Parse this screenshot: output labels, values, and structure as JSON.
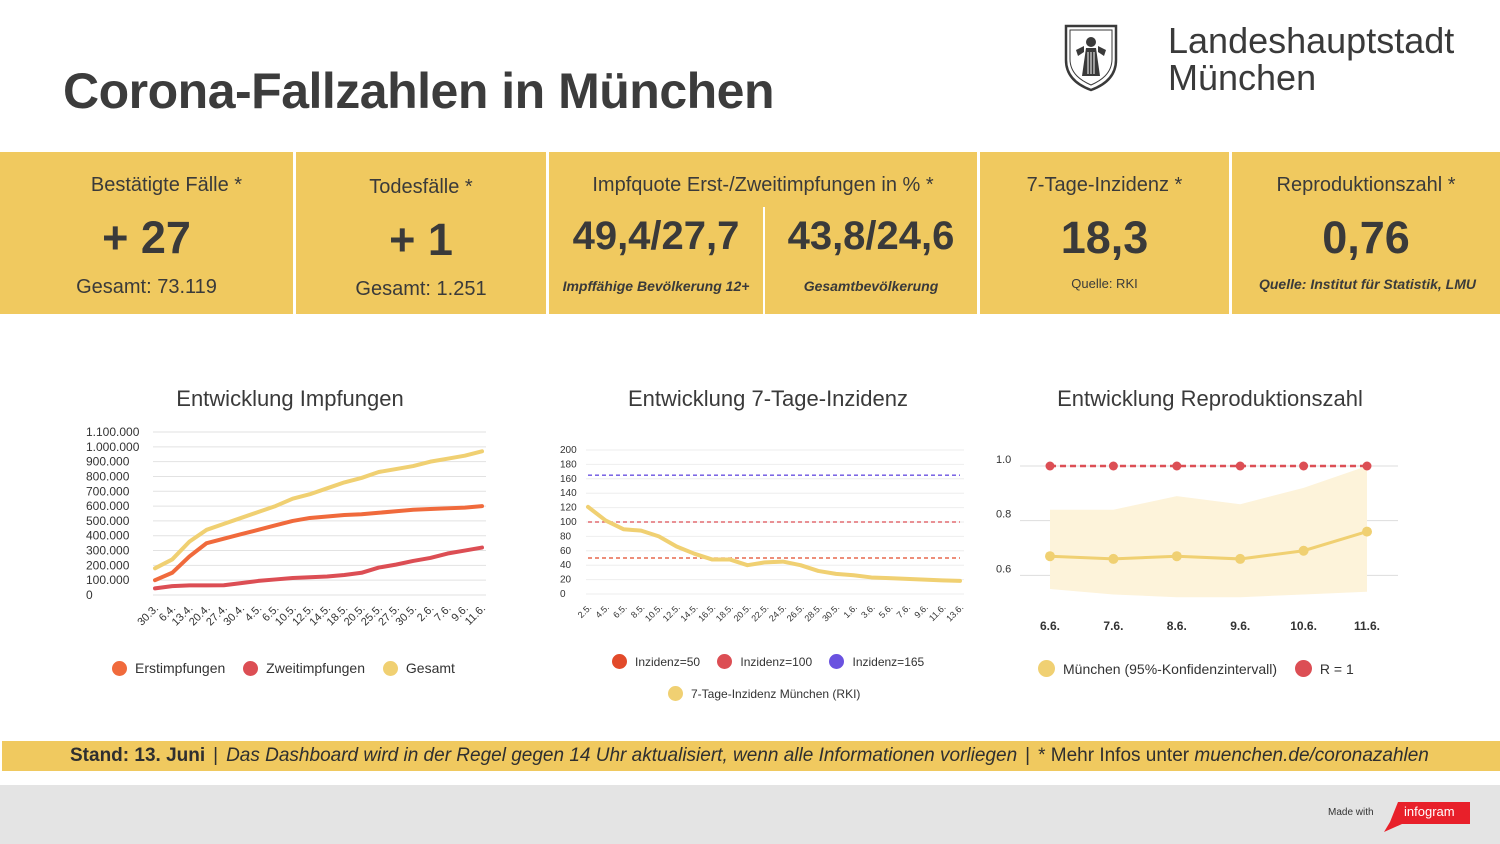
{
  "page": {
    "title": "Corona-Fallzahlen in München",
    "logo_line1": "Landeshauptstadt",
    "logo_line2": "München"
  },
  "stats": {
    "cases": {
      "title": "Bestätigte Fälle *",
      "value": "+ 27",
      "sub": "Gesamt: 73.119"
    },
    "deaths": {
      "title": "Todesfälle *",
      "value": "+ 1",
      "sub": "Gesamt: 1.251"
    },
    "vaccination": {
      "title": "Impfquote Erst-/Zweitimpfungen in % *",
      "value_left": "49,4/27,7",
      "label_left": "Impffähige Bevölkerung 12+",
      "value_right": "43,8/24,6",
      "label_right": "Gesamtbevölkerung"
    },
    "incidence": {
      "title": "7-Tage-Inzidenz *",
      "value": "18,3",
      "source": "Quelle: RKI"
    },
    "r_value": {
      "title": "Reproduktionszahl *",
      "value": "0,76",
      "source": "Quelle: Institut für Statistik, LMU"
    }
  },
  "colors": {
    "band": "#f0c95f",
    "first_dose": "#f06a3c",
    "second_dose": "#dc4e54",
    "total": "#f0d072",
    "inz50": "#e24a2a",
    "inz100": "#dc4e54",
    "inz165": "#6a52e0",
    "r_line": "#f0d072",
    "r_band": "#fdf3da",
    "r_one": "#dc4e54"
  },
  "chart_data": [
    {
      "type": "line",
      "title": "Entwicklung Impfungen",
      "categories": [
        "30.3.",
        "6.4.",
        "13.4.",
        "20.4.",
        "27.4.",
        "30.4.",
        "4.5.",
        "6.5.",
        "10.5.",
        "12.5.",
        "14.5.",
        "18.5.",
        "20.5.",
        "25.5.",
        "27.5.",
        "30.5.",
        "2.6.",
        "7.6.",
        "9.6.",
        "11.6."
      ],
      "y_ticks": [
        "0",
        "100.000",
        "200.000",
        "300.000",
        "400.000",
        "500.000",
        "600.000",
        "700.000",
        "800.000",
        "900.000",
        "1.000.000",
        "1.100.000"
      ],
      "ylim": [
        0,
        1100000
      ],
      "series": [
        {
          "name": "Erstimpfungen",
          "values": [
            100000,
            150000,
            260000,
            350000,
            380000,
            410000,
            440000,
            470000,
            500000,
            520000,
            530000,
            540000,
            545000,
            555000,
            565000,
            575000,
            580000,
            585000,
            590000,
            600000
          ]
        },
        {
          "name": "Zweitimpfungen",
          "values": [
            45000,
            60000,
            65000,
            65000,
            66000,
            80000,
            95000,
            105000,
            115000,
            120000,
            125000,
            135000,
            150000,
            185000,
            205000,
            230000,
            250000,
            280000,
            300000,
            320000
          ]
        },
        {
          "name": "Gesamt",
          "values": [
            180000,
            240000,
            360000,
            440000,
            480000,
            520000,
            560000,
            600000,
            650000,
            680000,
            720000,
            760000,
            790000,
            830000,
            850000,
            870000,
            900000,
            920000,
            940000,
            970000
          ]
        }
      ],
      "legend": [
        "Erstimpfungen",
        "Zweitimpfungen",
        "Gesamt"
      ]
    },
    {
      "type": "line",
      "title": "Entwicklung 7-Tage-Inzidenz",
      "categories": [
        "2.5.",
        "4.5.",
        "6.5.",
        "8.5.",
        "10.5.",
        "12.5.",
        "14.5.",
        "16.5.",
        "18.5.",
        "20.5.",
        "22.5.",
        "24.5.",
        "26.5.",
        "28.5.",
        "30.5.",
        "1.6.",
        "3.6.",
        "5.6.",
        "7.6.",
        "9.6.",
        "11.6.",
        "13.6."
      ],
      "y_ticks": [
        "0",
        "20",
        "40",
        "60",
        "80",
        "100",
        "120",
        "140",
        "160",
        "180",
        "200"
      ],
      "ylim": [
        0,
        200
      ],
      "series": [
        {
          "name": "7-Tage-Inzidenz München (RKI)",
          "values": [
            121,
            102,
            90,
            88,
            80,
            66,
            56,
            48,
            48,
            40,
            44,
            45,
            40,
            32,
            28,
            26,
            23,
            22,
            21,
            20,
            19,
            18.3
          ]
        }
      ],
      "reference_lines": [
        {
          "name": "Inzidenz=50",
          "value": 50
        },
        {
          "name": "Inzidenz=100",
          "value": 100
        },
        {
          "name": "Inzidenz=165",
          "value": 165
        }
      ],
      "legend": [
        "Inzidenz=50",
        "Inzidenz=100",
        "Inzidenz=165",
        "7-Tage-Inzidenz München (RKI)"
      ]
    },
    {
      "type": "line",
      "title": "Entwicklung Reproduktionszahl",
      "categories": [
        "6.6.",
        "7.6.",
        "8.6.",
        "9.6.",
        "10.6.",
        "11.6."
      ],
      "y_ticks": [
        "0.6",
        "0.8",
        "1.0"
      ],
      "ylim": [
        0.4,
        1.0
      ],
      "series": [
        {
          "name": "München (95%-Konfidenzintervall)",
          "values": [
            0.67,
            0.66,
            0.67,
            0.66,
            0.69,
            0.76
          ],
          "lower": [
            0.55,
            0.53,
            0.52,
            0.52,
            0.53,
            0.54
          ],
          "upper": [
            0.84,
            0.84,
            0.89,
            0.86,
            0.92,
            1.0
          ]
        },
        {
          "name": "R = 1",
          "values": [
            1.0,
            1.0,
            1.0,
            1.0,
            1.0,
            1.0
          ]
        }
      ],
      "legend": [
        "München (95%-Konfidenzintervall)",
        "R = 1"
      ]
    }
  ],
  "footer": {
    "stand": "Stand: 13. Juni",
    "note": "Das Dashboard wird in der Regel gegen 14 Uhr aktualisiert, wenn alle Informationen vorliegen",
    "more_prefix": "* Mehr Infos unter ",
    "more_link": "muenchen.de/coronazahlen",
    "separator": "|",
    "made_with": "Made with",
    "brand": "infogram"
  }
}
